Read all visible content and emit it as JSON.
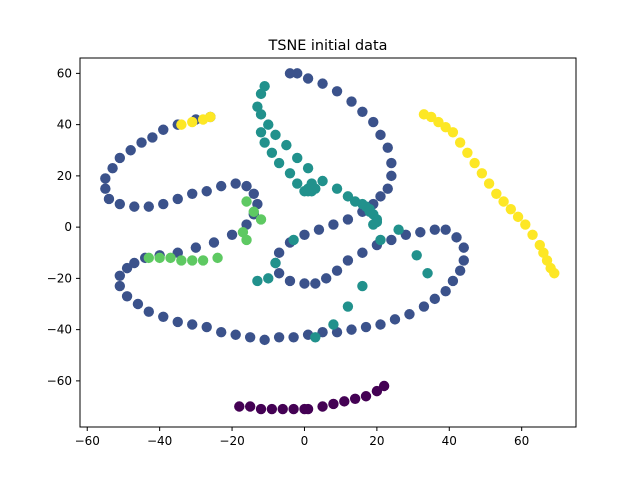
{
  "chart_data": {
    "type": "scatter",
    "title": "TSNE initial data",
    "xlabel": "",
    "ylabel": "",
    "xlim": [
      -62,
      75
    ],
    "ylim": [
      -78,
      66
    ],
    "xticks": [
      -60,
      -40,
      -20,
      0,
      20,
      40,
      60
    ],
    "yticks": [
      -60,
      -40,
      -20,
      0,
      20,
      40,
      60
    ],
    "xtick_labels": [
      "−60",
      "−40",
      "−20",
      "0",
      "20",
      "40",
      "60"
    ],
    "ytick_labels": [
      "−60",
      "−40",
      "−20",
      "0",
      "20",
      "40",
      "60"
    ],
    "grid": false,
    "marker": "circle",
    "point_colors": {
      "dark_purple": "#440154",
      "slate_blue": "#3b528b",
      "teal": "#21918c",
      "light_green": "#5ec962",
      "yellow": "#fde725"
    },
    "series": [
      {
        "color_key": "slate_blue",
        "x": [
          -26,
          -30,
          -35,
          -39,
          -42,
          -45,
          -48,
          -51,
          -53,
          -55,
          -55,
          -54,
          -51,
          -47,
          -43,
          -39,
          -35,
          -31,
          -27,
          -23,
          -19,
          -16,
          -14,
          -13,
          -14,
          -16,
          -20,
          -25,
          -30,
          -35,
          -40,
          -44,
          -47,
          -49,
          -51,
          -51,
          -49,
          -46,
          -43,
          -39,
          -35,
          -31,
          -27,
          -23,
          -19,
          -15,
          -11,
          -7,
          -3,
          1,
          5,
          9,
          13,
          17,
          21,
          25,
          29,
          33,
          36,
          39,
          41,
          43,
          44,
          44,
          42,
          39,
          36,
          32,
          28,
          24,
          20,
          16,
          12,
          9,
          6,
          3,
          0,
          -4,
          -7,
          -8,
          -7,
          -4,
          0,
          4,
          8,
          12,
          16,
          19,
          21,
          23,
          24,
          24,
          23,
          21,
          19,
          16,
          13,
          9,
          5,
          1,
          -2,
          -4
        ],
        "y": [
          43,
          42,
          40,
          38,
          35,
          33,
          30,
          27,
          23,
          19,
          15,
          11,
          9,
          8,
          8,
          9,
          11,
          13,
          14,
          16,
          17,
          16,
          13,
          9,
          5,
          1,
          -3,
          -6,
          -8,
          -10,
          -11,
          -12,
          -14,
          -16,
          -19,
          -23,
          -27,
          -30,
          -33,
          -35,
          -37,
          -38,
          -39,
          -41,
          -42,
          -43,
          -44,
          -43,
          -43,
          -42,
          -41,
          -41,
          -40,
          -39,
          -38,
          -36,
          -34,
          -31,
          -28,
          -25,
          -21,
          -17,
          -13,
          -8,
          -4,
          -1,
          -1,
          -2,
          -3,
          -5,
          -7,
          -10,
          -13,
          -17,
          -20,
          -22,
          -22,
          -21,
          -18,
          -14,
          -10,
          -6,
          -3,
          -1,
          1,
          3,
          6,
          9,
          12,
          15,
          20,
          25,
          31,
          36,
          41,
          45,
          49,
          53,
          56,
          58,
          60,
          60
        ]
      },
      {
        "color_key": "teal",
        "x": [
          -11,
          -12,
          -13,
          -12,
          -10,
          -8,
          -5,
          -2,
          1,
          5,
          9,
          12,
          14,
          16,
          17,
          18,
          18,
          19,
          20,
          20,
          19,
          -12,
          -11,
          -9,
          -7,
          -4,
          -2,
          0,
          1,
          2,
          2,
          2,
          3,
          1,
          -3,
          -8,
          -13,
          3,
          8,
          12,
          16,
          21,
          26,
          31,
          34,
          -10
        ],
        "y": [
          55,
          52,
          47,
          44,
          40,
          36,
          32,
          27,
          23,
          18,
          15,
          12,
          10,
          9,
          8,
          7,
          6,
          5,
          3,
          2,
          1,
          37,
          33,
          29,
          25,
          21,
          17,
          14,
          15,
          15,
          14,
          17,
          15,
          14,
          -5,
          -14,
          -21,
          -43,
          -38,
          -31,
          -23,
          -5,
          -1,
          -11,
          -18,
          -20
        ]
      },
      {
        "color_key": "light_green",
        "x": [
          -43,
          -40,
          -37,
          -34,
          -31,
          -28,
          -24,
          -16,
          -14,
          -12,
          -17,
          -16
        ],
        "y": [
          -12,
          -12,
          -12,
          -13,
          -13,
          -13,
          -12,
          10,
          6,
          3,
          -2,
          -5
        ]
      },
      {
        "color_key": "yellow",
        "x": [
          -34,
          -31,
          -28,
          -26,
          33,
          35,
          37,
          39,
          41,
          43,
          45,
          47,
          49,
          51,
          53,
          55,
          57,
          59,
          61,
          63,
          65,
          66,
          67,
          68,
          69
        ],
        "y": [
          40,
          41,
          42,
          43,
          44,
          43,
          41,
          39,
          37,
          33,
          29,
          25,
          21,
          17,
          13,
          10,
          7,
          4,
          1,
          -3,
          -7,
          -10,
          -13,
          -16,
          -18
        ]
      },
      {
        "color_key": "dark_purple",
        "x": [
          -18,
          -15,
          -12,
          -9,
          -6,
          -3,
          0,
          1,
          5,
          8,
          11,
          14,
          17,
          20,
          22
        ],
        "y": [
          -70,
          -70,
          -71,
          -71,
          -71,
          -71,
          -71,
          -71,
          -70,
          -69,
          -68,
          -67,
          -66,
          -64,
          -62
        ]
      }
    ]
  }
}
